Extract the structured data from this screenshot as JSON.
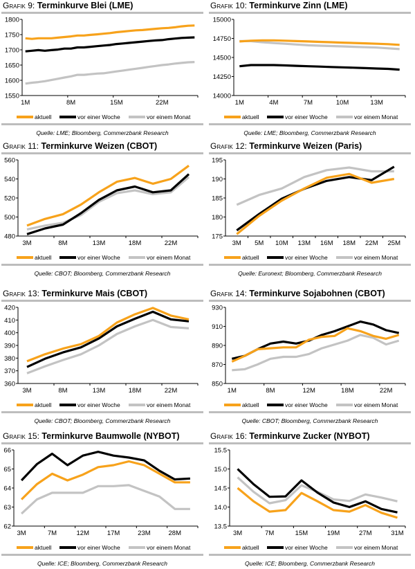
{
  "legend": [
    "aktuell",
    "vor einer Woche",
    "vor einem Monat"
  ],
  "colors": {
    "aktuell": "#F7A21B",
    "woche": "#000000",
    "monat": "#C3C3C3",
    "rule": "#BDBDBD"
  },
  "chart_data": [
    {
      "type": "line",
      "prefix": "Grafik 9:",
      "title": "Terminkurve Blei (LME)",
      "source": "Quelle: LME; Bloomberg, Commerzbank Research",
      "ylim": [
        1550,
        1800
      ],
      "yticks": [
        "1550",
        "1600",
        "1650",
        "1700",
        "1750",
        "1800"
      ],
      "categories": [
        "1M",
        "",
        "",
        "",
        "",
        "",
        "",
        "8M",
        "",
        "",
        "",
        "",
        "",
        "",
        "15M",
        "",
        "",
        "",
        "",
        "",
        "",
        "22M",
        "",
        "",
        "",
        "",
        ""
      ],
      "series": [
        {
          "name": "aktuell",
          "values": [
            1738,
            1736,
            1738,
            1738,
            1738,
            1740,
            1742,
            1744,
            1747,
            1747,
            1749,
            1751,
            1753,
            1755,
            1758,
            1760,
            1762,
            1764,
            1765,
            1767,
            1769,
            1771,
            1772,
            1774,
            1777,
            1779,
            1780
          ]
        },
        {
          "name": "vor einer Woche",
          "values": [
            1695,
            1697,
            1699,
            1697,
            1699,
            1701,
            1704,
            1704,
            1708,
            1708,
            1710,
            1712,
            1714,
            1716,
            1719,
            1721,
            1723,
            1725,
            1727,
            1729,
            1731,
            1732,
            1735,
            1737,
            1739,
            1740,
            1741
          ]
        },
        {
          "name": "vor einem Monat",
          "values": [
            1589,
            1592,
            1594,
            1597,
            1601,
            1605,
            1609,
            1613,
            1618,
            1618,
            1620,
            1622,
            1623,
            1626,
            1629,
            1632,
            1635,
            1638,
            1641,
            1644,
            1647,
            1650,
            1652,
            1655,
            1657,
            1659,
            1660
          ]
        }
      ]
    },
    {
      "type": "line",
      "prefix": "Grafik 10:",
      "title": "Terminkurve Zinn (LME)",
      "source": "Quelle: LME; Bloomberg, Commerzbank Research",
      "ylim": [
        14000,
        15000
      ],
      "yticks": [
        "14000",
        "14250",
        "14500",
        "14750",
        "15000"
      ],
      "categories": [
        "1M",
        "",
        "",
        "4M",
        "",
        "",
        "7M",
        "",
        "",
        "10M",
        "",
        "",
        "13M",
        "",
        ""
      ],
      "series": [
        {
          "name": "aktuell",
          "values": [
            14710,
            14720,
            14725,
            14725,
            14720,
            14715,
            14710,
            14705,
            14700,
            14695,
            14690,
            14685,
            14680,
            14675,
            14665
          ]
        },
        {
          "name": "vor einer Woche",
          "values": [
            14385,
            14400,
            14400,
            14400,
            14395,
            14390,
            14385,
            14380,
            14375,
            14370,
            14365,
            14360,
            14355,
            14350,
            14340
          ]
        },
        {
          "name": "vor einem Monat",
          "values": [
            14715,
            14715,
            14700,
            14690,
            14680,
            14670,
            14660,
            14655,
            14650,
            14645,
            14640,
            14635,
            14630,
            14620,
            14610
          ]
        }
      ]
    },
    {
      "type": "line",
      "prefix": "Grafik 11:",
      "title": "Terminkurve Weizen (CBOT)",
      "source": "Quelle: CBOT; Bloomberg, Commerzbank Research",
      "ylim": [
        480,
        560
      ],
      "yticks": [
        "480",
        "500",
        "520",
        "540",
        "560"
      ],
      "categories": [
        "3M",
        "",
        "8M",
        "",
        "13M",
        "",
        "18M",
        "",
        "22M",
        ""
      ],
      "series": [
        {
          "name": "aktuell",
          "values": [
            491,
            498,
            503,
            513,
            526,
            537,
            541,
            535,
            540,
            554
          ]
        },
        {
          "name": "vor einer Woche",
          "values": [
            482,
            488,
            492,
            504,
            518,
            528,
            532,
            526,
            528,
            545
          ]
        },
        {
          "name": "vor einem Monat",
          "values": [
            487,
            491,
            494,
            502,
            516,
            525,
            528,
            524,
            526,
            542
          ]
        }
      ]
    },
    {
      "type": "line",
      "prefix": "Grafik 12:",
      "title": "Terminkurve Weizen (Paris)",
      "source": "Quelle: Euronext; Bloomberg, Commerzbank Research",
      "ylim": [
        175,
        195
      ],
      "yticks": [
        "175",
        "180",
        "185",
        "190",
        "195"
      ],
      "categories": [
        "3M",
        "5M",
        "10M",
        "13M",
        "16M",
        "18M",
        "22M",
        "25M"
      ],
      "series": [
        {
          "name": "aktuell",
          "values": [
            175.5,
            180.3,
            184.3,
            187.5,
            190.3,
            191.3,
            189.0,
            190.0
          ]
        },
        {
          "name": "vor einer Woche",
          "values": [
            176.5,
            180.8,
            184.8,
            187.4,
            189.5,
            190.5,
            189.7,
            193.2
          ]
        },
        {
          "name": "vor einem Monat",
          "values": [
            183.2,
            185.8,
            187.5,
            190.5,
            192.3,
            193.0,
            192.0,
            192.0
          ]
        }
      ]
    },
    {
      "type": "line",
      "prefix": "Grafik 13:",
      "title": "Terminkurve Mais (CBOT)",
      "source": "Quelle: CBOT; Bloomberg, Commerzbank Research",
      "ylim": [
        360,
        420
      ],
      "yticks": [
        "360",
        "370",
        "380",
        "390",
        "400",
        "410",
        "420"
      ],
      "categories": [
        "3M",
        "",
        "8M",
        "",
        "13M",
        "",
        "18M",
        "",
        "22M",
        ""
      ],
      "series": [
        {
          "name": "aktuell",
          "values": [
            377.5,
            383,
            387.5,
            391,
            397.5,
            408,
            414.5,
            419.5,
            413.5,
            410.5
          ]
        },
        {
          "name": "vor einer Woche",
          "values": [
            373,
            379.5,
            384.5,
            388.5,
            395.5,
            405,
            411,
            416.5,
            410.5,
            409
          ]
        },
        {
          "name": "vor einem Monat",
          "values": [
            368,
            373.5,
            378.5,
            383,
            390,
            399,
            405,
            410,
            404.5,
            403.5
          ]
        }
      ]
    },
    {
      "type": "line",
      "prefix": "Grafik 14:",
      "title": "Terminkurve Sojabohnen (CBOT)",
      "source": "Quelle: CBOT; Bloomberg, Commerzbank Research",
      "ylim": [
        850,
        930
      ],
      "yticks": [
        "850",
        "870",
        "890",
        "910",
        "930"
      ],
      "categories": [
        "1M",
        "",
        "",
        "8M",
        "",
        "",
        "12M",
        "",
        "",
        "18M",
        "",
        "",
        "22M",
        ""
      ],
      "series": [
        {
          "name": "aktuell",
          "values": [
            873,
            879,
            886,
            887,
            888,
            888,
            896,
            899,
            900,
            908,
            905,
            900,
            897,
            901
          ]
        },
        {
          "name": "vor einer Woche",
          "values": [
            876,
            879,
            886,
            892,
            894,
            892,
            895,
            901,
            905,
            910,
            915,
            912,
            906,
            903
          ]
        },
        {
          "name": "vor einem Monat",
          "values": [
            864,
            865,
            870,
            876,
            878,
            878,
            881,
            887,
            891,
            895,
            901,
            898,
            891,
            895
          ]
        }
      ]
    },
    {
      "type": "line",
      "prefix": "Grafik 15:",
      "title": "Terminkurve Baumwolle (NYBOT)",
      "source": "Quelle: ICE; Bloomberg, Commerzbank Research",
      "ylim": [
        62,
        66
      ],
      "yticks": [
        "62",
        "63",
        "64",
        "65",
        "66"
      ],
      "categories": [
        "3M",
        "",
        "7M",
        "",
        "12M",
        "",
        "17M",
        "",
        "23M",
        "",
        "28M",
        ""
      ],
      "series": [
        {
          "name": "aktuell",
          "values": [
            63.4,
            64.2,
            64.75,
            64.4,
            64.7,
            65.1,
            65.2,
            65.4,
            65.2,
            64.75,
            64.3,
            64.3
          ]
        },
        {
          "name": "vor einer Woche",
          "values": [
            64.4,
            65.25,
            65.8,
            65.2,
            65.7,
            65.9,
            65.7,
            65.6,
            65.45,
            64.9,
            64.45,
            64.5
          ]
        },
        {
          "name": "vor einem Monat",
          "values": [
            62.65,
            63.4,
            63.75,
            63.75,
            63.75,
            64.1,
            64.1,
            64.15,
            63.85,
            63.55,
            62.9,
            62.9
          ]
        }
      ]
    },
    {
      "type": "line",
      "prefix": "Grafik 16:",
      "title": "Terminkurve Zucker (NYBOT)",
      "source": "Quelle: ICE; Bloomberg, Commerzbank Research",
      "ylim": [
        13.5,
        15.5
      ],
      "yticks": [
        "13.5",
        "14.0",
        "14.5",
        "15.0",
        "15.5"
      ],
      "categories": [
        "3M",
        "",
        "7M",
        "",
        "15M",
        "",
        "19M",
        "",
        "27M",
        "",
        "31M"
      ],
      "series": [
        {
          "name": "aktuell",
          "values": [
            14.5,
            14.15,
            13.88,
            13.92,
            14.37,
            14.15,
            13.92,
            13.88,
            14.05,
            13.85,
            13.72
          ]
        },
        {
          "name": "vor einer Woche",
          "values": [
            15.0,
            14.6,
            14.27,
            14.28,
            14.7,
            14.38,
            14.12,
            14.0,
            14.15,
            13.95,
            13.86
          ]
        },
        {
          "name": "vor einem Monat",
          "values": [
            14.78,
            14.4,
            14.1,
            14.18,
            14.57,
            14.4,
            14.2,
            14.16,
            14.33,
            14.25,
            14.15
          ]
        }
      ]
    }
  ]
}
